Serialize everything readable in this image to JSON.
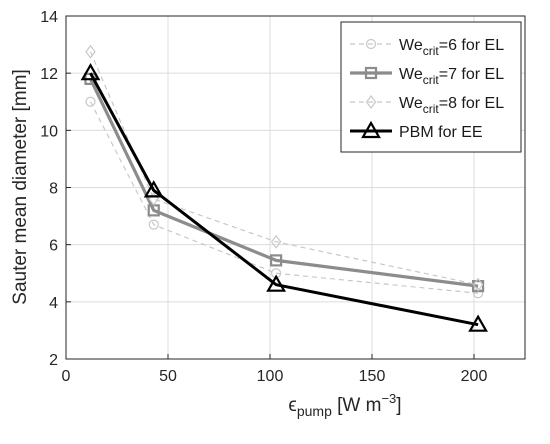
{
  "chart_data": {
    "type": "line",
    "title": "",
    "xlabel": {
      "main": "ϵ",
      "sub": "pump",
      "rest": " [W m",
      "sup": "−3",
      "end": "]"
    },
    "ylabel": "Sauter mean diameter [mm]",
    "xlim": [
      0,
      225
    ],
    "ylim": [
      2,
      14
    ],
    "xticks": [
      0,
      50,
      100,
      150,
      200
    ],
    "yticks": [
      2,
      4,
      6,
      8,
      10,
      12,
      14
    ],
    "grid": true,
    "legend_position": "top-right",
    "series": [
      {
        "legend": {
          "pre": "We",
          "sub": "crit",
          "post": "=6 for EL"
        },
        "x": [
          12,
          43,
          103,
          202
        ],
        "values": [
          11.0,
          6.7,
          5.0,
          4.3
        ],
        "color": "#c8c8c8",
        "style": "dashed",
        "marker": "circle"
      },
      {
        "legend": {
          "pre": "We",
          "sub": "crit",
          "post": "=7 for EL"
        },
        "x": [
          12,
          43,
          103,
          202
        ],
        "values": [
          11.8,
          7.2,
          5.45,
          4.55
        ],
        "color": "#8c8c8c",
        "style": "solid",
        "marker": "square"
      },
      {
        "legend": {
          "pre": "We",
          "sub": "crit",
          "post": "=8 for EL"
        },
        "x": [
          12,
          43,
          103,
          202
        ],
        "values": [
          12.75,
          7.6,
          6.1,
          4.6
        ],
        "color": "#c8c8c8",
        "style": "dashed",
        "marker": "diamond"
      },
      {
        "legend": {
          "pre": "PBM for EE",
          "sub": "",
          "post": ""
        },
        "x": [
          12,
          43,
          103,
          202
        ],
        "values": [
          12.0,
          7.9,
          4.6,
          3.2
        ],
        "color": "#000000",
        "style": "solid",
        "marker": "triangle"
      }
    ]
  }
}
